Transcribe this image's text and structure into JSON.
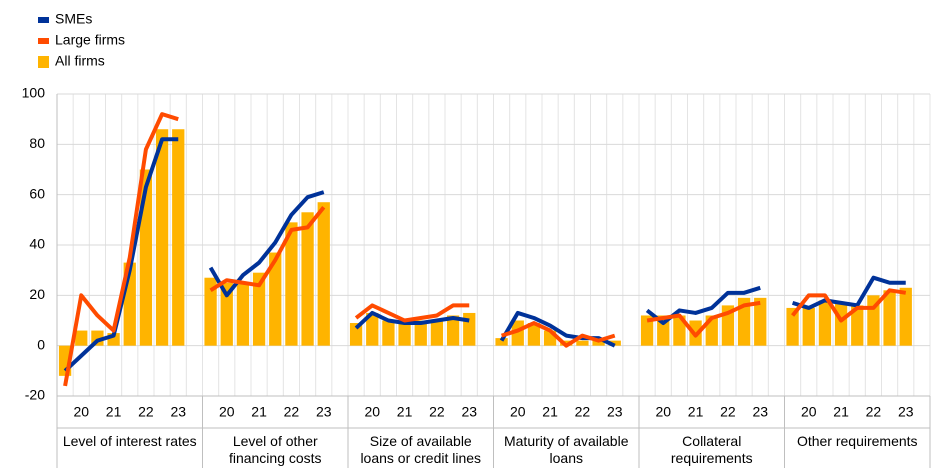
{
  "chart_data": {
    "type": "grouped-bar-line",
    "groups": [
      "Level of interest rates",
      "Level of other financing costs",
      "Size of available loans or credit lines",
      "Maturity of available loans",
      "Collateral requirements",
      "Other requirements"
    ],
    "categories": [
      null,
      "20",
      null,
      "21",
      null,
      "22",
      null,
      "23"
    ],
    "series": [
      {
        "name": "SMEs",
        "color": "#003299",
        "kind": "line",
        "values": [
          [
            -10,
            -4,
            2,
            4,
            30,
            63,
            82,
            82
          ],
          [
            31,
            20,
            28,
            33,
            41,
            52,
            59,
            61
          ],
          [
            7,
            13,
            10,
            9,
            9,
            10,
            11,
            10
          ],
          [
            2,
            13,
            11,
            8,
            4,
            3,
            3,
            0
          ],
          [
            14,
            9,
            14,
            13,
            15,
            21,
            21,
            23
          ],
          [
            17,
            15,
            18,
            17,
            16,
            27,
            25,
            25
          ]
        ]
      },
      {
        "name": "Large firms",
        "color": "#ff4b00",
        "kind": "line",
        "values": [
          [
            -16,
            20,
            12,
            6,
            35,
            78,
            92,
            90
          ],
          [
            22,
            26,
            25,
            24,
            34,
            46,
            47,
            55
          ],
          [
            11,
            16,
            13,
            10,
            11,
            12,
            16,
            16
          ],
          [
            4,
            6,
            9,
            6,
            0,
            4,
            2,
            4
          ],
          [
            10,
            11,
            12,
            4,
            11,
            13,
            16,
            17
          ],
          [
            12,
            20,
            20,
            10,
            15,
            15,
            22,
            21
          ]
        ]
      },
      {
        "name": "All firms",
        "color": "#ffb400",
        "kind": "bar",
        "values": [
          [
            -12,
            6,
            6,
            5,
            33,
            70,
            86,
            86
          ],
          [
            27,
            25,
            25,
            29,
            37,
            49,
            53,
            57
          ],
          [
            9,
            13,
            10,
            9,
            10,
            10,
            12,
            13
          ],
          [
            3,
            10,
            9,
            6,
            2,
            2,
            3,
            2
          ],
          [
            12,
            12,
            12,
            10,
            12,
            16,
            19,
            19
          ],
          [
            15,
            15,
            18,
            17,
            16,
            20,
            22,
            23
          ]
        ]
      }
    ],
    "ylim": [
      -20,
      100
    ],
    "yticks": [
      -20,
      0,
      20,
      40,
      60,
      80,
      100
    ],
    "grid": true
  }
}
